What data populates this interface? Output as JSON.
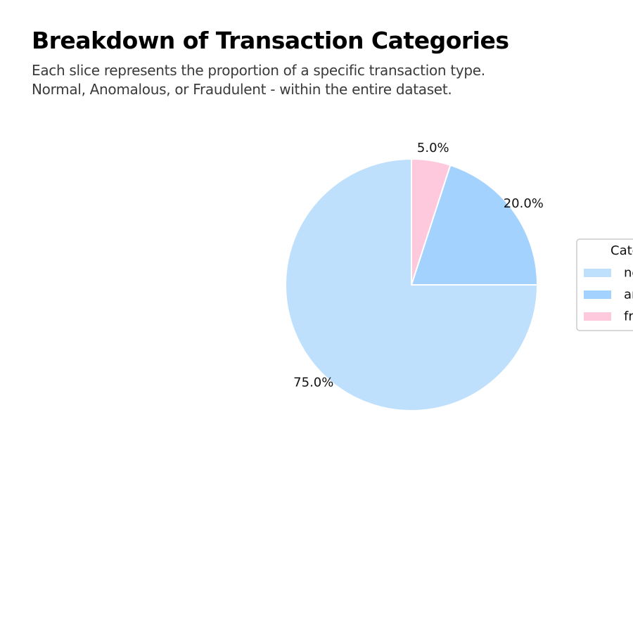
{
  "chart_data": {
    "type": "pie",
    "title": "Breakdown of Transaction Categories",
    "subtitle_lines": [
      "Each slice represents the proportion of a specific transaction type.",
      "Normal, Anomalous, or Fraudulent - within the entire dataset."
    ],
    "categories": [
      "normal",
      "anomalous",
      "fraudulent"
    ],
    "values": [
      75.0,
      20.0,
      5.0
    ],
    "labels": [
      "75.0%",
      "20.0%",
      "5.0%"
    ],
    "colors": [
      "#bee0fd",
      "#a3d2fe",
      "#fec8dd"
    ],
    "start_angle_deg": 90,
    "direction": "counterclockwise",
    "legend": {
      "title": "Category",
      "placement": "right"
    }
  }
}
